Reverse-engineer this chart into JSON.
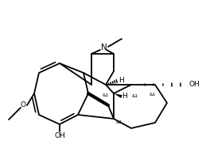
{
  "bg": "#ffffff",
  "lc": "#000000",
  "lw": 1.3,
  "figsize": [
    2.55,
    1.92
  ],
  "dpi": 100,
  "xlim": [
    5,
    260
  ],
  "ylim": [
    5,
    197
  ]
}
